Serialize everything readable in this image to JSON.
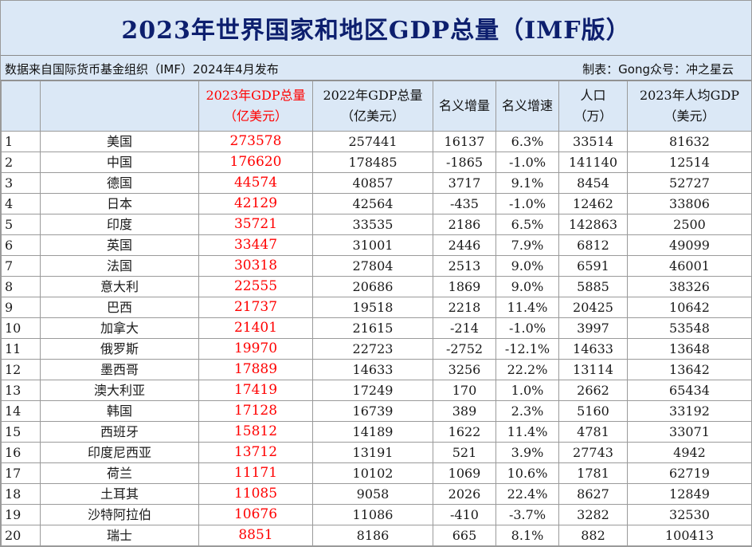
{
  "title": "2023年世界国家和地区GDP总量（IMF版）",
  "source": "数据来自国际货币基金组织（IMF）2024年4月发布",
  "credit": "制表：Gong众号：冲之星云",
  "headers": {
    "rank": "",
    "country": "",
    "gdp2023_line1": "2023年GDP总量",
    "gdp2023_line2": "（亿美元）",
    "gdp2022_line1": "2022年GDP总量",
    "gdp2022_line2": "（亿美元）",
    "nominal_increase": "名义增量",
    "nominal_growth": "名义增速",
    "population_line1": "人口",
    "population_line2": "（万）",
    "per_capita_line1": "2023年人均GDP",
    "per_capita_line2": "（美元）"
  },
  "rows": [
    {
      "rank": "1",
      "country": "美国",
      "gdp2023": "273578",
      "gdp2022": "257441",
      "increase": "16137",
      "growth": "6.3%",
      "population": "33514",
      "per_capita": "81632"
    },
    {
      "rank": "2",
      "country": "中国",
      "gdp2023": "176620",
      "gdp2022": "178485",
      "increase": "-1865",
      "growth": "-1.0%",
      "population": "141140",
      "per_capita": "12514"
    },
    {
      "rank": "3",
      "country": "德国",
      "gdp2023": "44574",
      "gdp2022": "40857",
      "increase": "3717",
      "growth": "9.1%",
      "population": "8454",
      "per_capita": "52727"
    },
    {
      "rank": "4",
      "country": "日本",
      "gdp2023": "42129",
      "gdp2022": "42564",
      "increase": "-435",
      "growth": "-1.0%",
      "population": "12462",
      "per_capita": "33806"
    },
    {
      "rank": "5",
      "country": "印度",
      "gdp2023": "35721",
      "gdp2022": "33535",
      "increase": "2186",
      "growth": "6.5%",
      "population": "142863",
      "per_capita": "2500"
    },
    {
      "rank": "6",
      "country": "英国",
      "gdp2023": "33447",
      "gdp2022": "31001",
      "increase": "2446",
      "growth": "7.9%",
      "population": "6812",
      "per_capita": "49099"
    },
    {
      "rank": "7",
      "country": "法国",
      "gdp2023": "30318",
      "gdp2022": "27804",
      "increase": "2513",
      "growth": "9.0%",
      "population": "6591",
      "per_capita": "46001"
    },
    {
      "rank": "8",
      "country": "意大利",
      "gdp2023": "22555",
      "gdp2022": "20686",
      "increase": "1869",
      "growth": "9.0%",
      "population": "5885",
      "per_capita": "38326"
    },
    {
      "rank": "9",
      "country": "巴西",
      "gdp2023": "21737",
      "gdp2022": "19518",
      "increase": "2218",
      "growth": "11.4%",
      "population": "20425",
      "per_capita": "10642"
    },
    {
      "rank": "10",
      "country": "加拿大",
      "gdp2023": "21401",
      "gdp2022": "21615",
      "increase": "-214",
      "growth": "-1.0%",
      "population": "3997",
      "per_capita": "53548"
    },
    {
      "rank": "11",
      "country": "俄罗斯",
      "gdp2023": "19970",
      "gdp2022": "22723",
      "increase": "-2752",
      "growth": "-12.1%",
      "population": "14633",
      "per_capita": "13648"
    },
    {
      "rank": "12",
      "country": "墨西哥",
      "gdp2023": "17889",
      "gdp2022": "14633",
      "increase": "3256",
      "growth": "22.2%",
      "population": "13114",
      "per_capita": "13642"
    },
    {
      "rank": "13",
      "country": "澳大利亚",
      "gdp2023": "17419",
      "gdp2022": "17249",
      "increase": "170",
      "growth": "1.0%",
      "population": "2662",
      "per_capita": "65434"
    },
    {
      "rank": "14",
      "country": "韩国",
      "gdp2023": "17128",
      "gdp2022": "16739",
      "increase": "389",
      "growth": "2.3%",
      "population": "5160",
      "per_capita": "33192"
    },
    {
      "rank": "15",
      "country": "西班牙",
      "gdp2023": "15812",
      "gdp2022": "14189",
      "increase": "1622",
      "growth": "11.4%",
      "population": "4781",
      "per_capita": "33071"
    },
    {
      "rank": "16",
      "country": "印度尼西亚",
      "gdp2023": "13712",
      "gdp2022": "13191",
      "increase": "521",
      "growth": "3.9%",
      "population": "27743",
      "per_capita": "4942"
    },
    {
      "rank": "17",
      "country": "荷兰",
      "gdp2023": "11171",
      "gdp2022": "10102",
      "increase": "1069",
      "growth": "10.6%",
      "population": "1781",
      "per_capita": "62719"
    },
    {
      "rank": "18",
      "country": "土耳其",
      "gdp2023": "11085",
      "gdp2022": "9058",
      "increase": "2026",
      "growth": "22.4%",
      "population": "8627",
      "per_capita": "12849"
    },
    {
      "rank": "19",
      "country": "沙特阿拉伯",
      "gdp2023": "10676",
      "gdp2022": "11086",
      "increase": "-410",
      "growth": "-3.7%",
      "population": "3282",
      "per_capita": "32530"
    },
    {
      "rank": "20",
      "country": "瑞士",
      "gdp2023": "8851",
      "gdp2022": "8186",
      "increase": "665",
      "growth": "8.1%",
      "population": "882",
      "per_capita": "100413"
    }
  ]
}
